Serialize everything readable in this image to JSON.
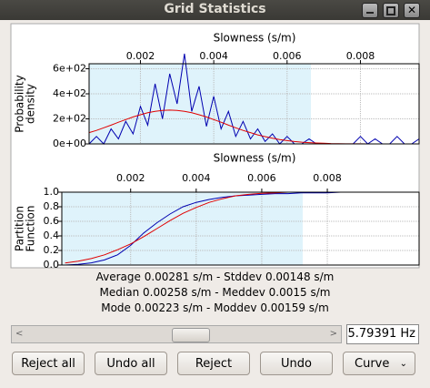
{
  "window": {
    "title": "Grid Statistics"
  },
  "chart_data": [
    {
      "type": "line",
      "xlabel": "Slowness (s/m)",
      "ylabel": [
        "Probability",
        "density"
      ],
      "xlim": [
        0.0006,
        0.0096
      ],
      "xticks": [
        0.002,
        0.004,
        0.006,
        0.008
      ],
      "ylim": [
        0,
        640
      ],
      "yticks": [
        {
          "value": 0,
          "label": "0e+00"
        },
        {
          "value": 200,
          "label": "2e+02"
        },
        {
          "value": 400,
          "label": "4e+02"
        },
        {
          "value": 600,
          "label": "6e+02"
        }
      ],
      "highlight_xlim": [
        0.0006,
        0.00665
      ],
      "grid": true,
      "x": [
        0.0006,
        0.0008,
        0.001,
        0.0012,
        0.0014,
        0.0016,
        0.0018,
        0.002,
        0.0022,
        0.0024,
        0.0026,
        0.0028,
        0.003,
        0.0032,
        0.0034,
        0.0036,
        0.0038,
        0.004,
        0.0042,
        0.0044,
        0.0046,
        0.0048,
        0.005,
        0.0052,
        0.0054,
        0.0056,
        0.0058,
        0.006,
        0.0062,
        0.0064,
        0.0066,
        0.0068,
        0.007,
        0.0072,
        0.0074,
        0.0076,
        0.0078,
        0.008,
        0.0082,
        0.0084,
        0.0086,
        0.0088,
        0.009,
        0.0092,
        0.0094,
        0.0096
      ],
      "series": [
        {
          "color": "#0000b0",
          "values": [
            0,
            60,
            0,
            120,
            40,
            180,
            80,
            300,
            150,
            480,
            200,
            560,
            320,
            720,
            260,
            460,
            140,
            380,
            120,
            260,
            60,
            180,
            40,
            120,
            20,
            80,
            0,
            60,
            0,
            0,
            40,
            0,
            0,
            0,
            0,
            0,
            0,
            60,
            0,
            40,
            0,
            0,
            60,
            0,
            0,
            40
          ]
        },
        {
          "color": "#e00000",
          "values": [
            90,
            108,
            129,
            150,
            173,
            194,
            215,
            233,
            249,
            260,
            268,
            270,
            268,
            260,
            249,
            233,
            215,
            194,
            173,
            150,
            129,
            108,
            90,
            72,
            58,
            45,
            34,
            26,
            19,
            14,
            10,
            7,
            5,
            3,
            2,
            1,
            1,
            1,
            0,
            0,
            0,
            0,
            0,
            0,
            0,
            0
          ]
        }
      ]
    },
    {
      "type": "line",
      "xlabel": "Slowness (s/m)",
      "ylabel": [
        "Partition",
        "Function"
      ],
      "xlim": [
        -0.0001,
        0.0108
      ],
      "xticks": [
        0.002,
        0.004,
        0.006,
        0.008
      ],
      "ylim": [
        0,
        1
      ],
      "yticks": [
        {
          "value": 0,
          "label": "0.0"
        },
        0.2,
        0.4,
        0.6,
        0.8,
        {
          "value": 1,
          "label": "1.0"
        }
      ],
      "highlight_xlim": [
        -0.0001,
        0.00725
      ],
      "grid": true,
      "x": [
        0,
        0.0004,
        0.0008,
        0.0012,
        0.0016,
        0.002,
        0.0024,
        0.0028,
        0.0032,
        0.0036,
        0.004,
        0.0044,
        0.0048,
        0.0052,
        0.0056,
        0.006,
        0.0064,
        0.0068,
        0.0072,
        0.0076,
        0.008,
        0.0084,
        0.0088,
        0.0092,
        0.0096,
        0.01,
        0.0104,
        0.0108
      ],
      "series": [
        {
          "color": "#0000b0",
          "values": [
            0,
            0.01,
            0.03,
            0.07,
            0.14,
            0.27,
            0.44,
            0.58,
            0.7,
            0.8,
            0.86,
            0.9,
            0.93,
            0.95,
            0.96,
            0.97,
            0.98,
            0.98,
            0.99,
            0.99,
            0.99,
            1,
            1,
            1,
            1,
            1,
            1,
            1
          ]
        },
        {
          "color": "#e00000",
          "values": [
            0.029,
            0.053,
            0.089,
            0.14,
            0.21,
            0.29,
            0.39,
            0.5,
            0.61,
            0.71,
            0.79,
            0.86,
            0.91,
            0.95,
            0.97,
            0.985,
            0.99,
            1,
            1,
            1,
            1,
            1,
            1,
            1,
            1,
            1,
            1,
            1
          ]
        }
      ]
    }
  ],
  "stats": [
    "Average 0.00281 s/m - Stddev 0.00148 s/m",
    "Median 0.00258 s/m - Meddev 0.0015 s/m",
    "Mode 0.00223 s/m - Moddev 0.00159 s/m"
  ],
  "controls": {
    "frequency": "5.79391 Hz",
    "buttons": [
      "Reject all",
      "Undo all",
      "Reject",
      "Undo"
    ],
    "dropdown": "Curve"
  }
}
